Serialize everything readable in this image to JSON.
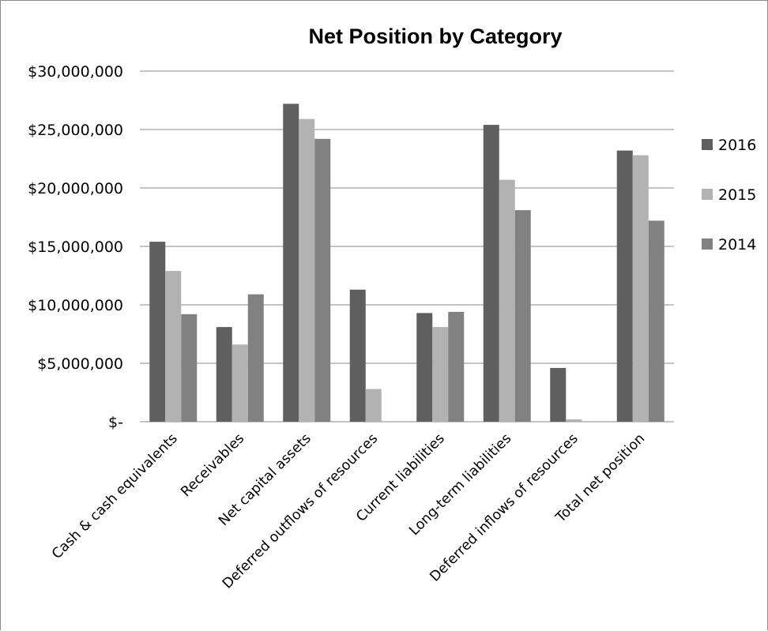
{
  "chart_data": {
    "type": "bar",
    "title": "Net Position by Category",
    "xlabel": "",
    "ylabel": "",
    "ylim": [
      0,
      30000000
    ],
    "grid": true,
    "legend_position": "right",
    "y_ticks": [
      {
        "value": 0,
        "label": "$-"
      },
      {
        "value": 5000000,
        "label": "$5,000,000"
      },
      {
        "value": 10000000,
        "label": "$10,000,000"
      },
      {
        "value": 15000000,
        "label": "$15,000,000"
      },
      {
        "value": 20000000,
        "label": "$20,000,000"
      },
      {
        "value": 25000000,
        "label": "$25,000,000"
      },
      {
        "value": 30000000,
        "label": "$30,000,000"
      }
    ],
    "categories": [
      "Cash & cash equivalents",
      "Receivables",
      "Net capital assets",
      "Deferred outflows of resources",
      "Current liabilities",
      "Long-term liabilities",
      "Deferred inflows of resources",
      "Total net position"
    ],
    "series": [
      {
        "name": "2016",
        "color": "#5f5f5f",
        "values": [
          15400000,
          8100000,
          27200000,
          11300000,
          9300000,
          25400000,
          4600000,
          23200000
        ]
      },
      {
        "name": "2015",
        "color": "#b2b2b2",
        "values": [
          12900000,
          6600000,
          25900000,
          2800000,
          8100000,
          20700000,
          200000,
          22800000
        ]
      },
      {
        "name": "2014",
        "color": "#818181",
        "values": [
          9200000,
          10900000,
          24200000,
          0,
          9400000,
          18100000,
          0,
          17200000
        ]
      }
    ]
  }
}
